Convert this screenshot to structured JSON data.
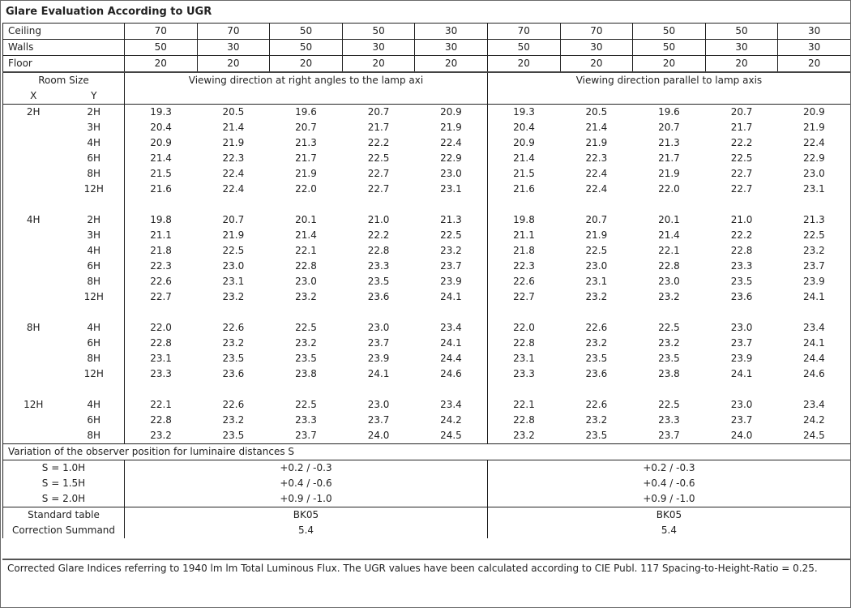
{
  "title": "Glare Evaluation According to UGR",
  "reflectances": [
    {
      "label": "Ceiling",
      "values": [
        "70",
        "70",
        "50",
        "50",
        "30",
        "70",
        "70",
        "50",
        "50",
        "30"
      ]
    },
    {
      "label": "Walls",
      "values": [
        "50",
        "30",
        "50",
        "30",
        "30",
        "50",
        "30",
        "50",
        "30",
        "30"
      ]
    },
    {
      "label": "Floor",
      "values": [
        "20",
        "20",
        "20",
        "20",
        "20",
        "20",
        "20",
        "20",
        "20",
        "20"
      ]
    }
  ],
  "header": {
    "room_size": "Room Size",
    "x": "X",
    "y": "Y",
    "dir_right": "Viewing direction at right angles to the lamp axi",
    "dir_parallel": "Viewing direction parallel to lamp axis"
  },
  "groups": [
    {
      "x": "2H",
      "rows": [
        {
          "y": "2H",
          "values": [
            "19.3",
            "20.5",
            "19.6",
            "20.7",
            "20.9",
            "19.3",
            "20.5",
            "19.6",
            "20.7",
            "20.9"
          ]
        },
        {
          "y": "3H",
          "values": [
            "20.4",
            "21.4",
            "20.7",
            "21.7",
            "21.9",
            "20.4",
            "21.4",
            "20.7",
            "21.7",
            "21.9"
          ]
        },
        {
          "y": "4H",
          "values": [
            "20.9",
            "21.9",
            "21.3",
            "22.2",
            "22.4",
            "20.9",
            "21.9",
            "21.3",
            "22.2",
            "22.4"
          ]
        },
        {
          "y": "6H",
          "values": [
            "21.4",
            "22.3",
            "21.7",
            "22.5",
            "22.9",
            "21.4",
            "22.3",
            "21.7",
            "22.5",
            "22.9"
          ]
        },
        {
          "y": "8H",
          "values": [
            "21.5",
            "22.4",
            "21.9",
            "22.7",
            "23.0",
            "21.5",
            "22.4",
            "21.9",
            "22.7",
            "23.0"
          ]
        },
        {
          "y": "12H",
          "values": [
            "21.6",
            "22.4",
            "22.0",
            "22.7",
            "23.1",
            "21.6",
            "22.4",
            "22.0",
            "22.7",
            "23.1"
          ]
        }
      ]
    },
    {
      "x": "4H",
      "rows": [
        {
          "y": "2H",
          "values": [
            "19.8",
            "20.7",
            "20.1",
            "21.0",
            "21.3",
            "19.8",
            "20.7",
            "20.1",
            "21.0",
            "21.3"
          ]
        },
        {
          "y": "3H",
          "values": [
            "21.1",
            "21.9",
            "21.4",
            "22.2",
            "22.5",
            "21.1",
            "21.9",
            "21.4",
            "22.2",
            "22.5"
          ]
        },
        {
          "y": "4H",
          "values": [
            "21.8",
            "22.5",
            "22.1",
            "22.8",
            "23.2",
            "21.8",
            "22.5",
            "22.1",
            "22.8",
            "23.2"
          ]
        },
        {
          "y": "6H",
          "values": [
            "22.3",
            "23.0",
            "22.8",
            "23.3",
            "23.7",
            "22.3",
            "23.0",
            "22.8",
            "23.3",
            "23.7"
          ]
        },
        {
          "y": "8H",
          "values": [
            "22.6",
            "23.1",
            "23.0",
            "23.5",
            "23.9",
            "22.6",
            "23.1",
            "23.0",
            "23.5",
            "23.9"
          ]
        },
        {
          "y": "12H",
          "values": [
            "22.7",
            "23.2",
            "23.2",
            "23.6",
            "24.1",
            "22.7",
            "23.2",
            "23.2",
            "23.6",
            "24.1"
          ]
        }
      ]
    },
    {
      "x": "8H",
      "rows": [
        {
          "y": "4H",
          "values": [
            "22.0",
            "22.6",
            "22.5",
            "23.0",
            "23.4",
            "22.0",
            "22.6",
            "22.5",
            "23.0",
            "23.4"
          ]
        },
        {
          "y": "6H",
          "values": [
            "22.8",
            "23.2",
            "23.2",
            "23.7",
            "24.1",
            "22.8",
            "23.2",
            "23.2",
            "23.7",
            "24.1"
          ]
        },
        {
          "y": "8H",
          "values": [
            "23.1",
            "23.5",
            "23.5",
            "23.9",
            "24.4",
            "23.1",
            "23.5",
            "23.5",
            "23.9",
            "24.4"
          ]
        },
        {
          "y": "12H",
          "values": [
            "23.3",
            "23.6",
            "23.8",
            "24.1",
            "24.6",
            "23.3",
            "23.6",
            "23.8",
            "24.1",
            "24.6"
          ]
        }
      ]
    },
    {
      "x": "12H",
      "rows": [
        {
          "y": "4H",
          "values": [
            "22.1",
            "22.6",
            "22.5",
            "23.0",
            "23.4",
            "22.1",
            "22.6",
            "22.5",
            "23.0",
            "23.4"
          ]
        },
        {
          "y": "6H",
          "values": [
            "22.8",
            "23.2",
            "23.3",
            "23.7",
            "24.2",
            "22.8",
            "23.2",
            "23.3",
            "23.7",
            "24.2"
          ]
        },
        {
          "y": "8H",
          "values": [
            "23.2",
            "23.5",
            "23.7",
            "24.0",
            "24.5",
            "23.2",
            "23.5",
            "23.7",
            "24.0",
            "24.5"
          ]
        }
      ]
    }
  ],
  "variation": {
    "title": "Variation of the observer position for luminaire distances S",
    "rows": [
      {
        "label": "S = 1.0H",
        "right": "+0.2 / -0.3",
        "parallel": "+0.2 / -0.3"
      },
      {
        "label": "S = 1.5H",
        "right": "+0.4 / -0.6",
        "parallel": "+0.4 / -0.6"
      },
      {
        "label": "S = 2.0H",
        "right": "+0.9 / -1.0",
        "parallel": "+0.9 / -1.0"
      }
    ]
  },
  "standard": {
    "label": "Standard table",
    "right": "BK05",
    "parallel": "BK05"
  },
  "correction": {
    "label": "Correction Summand",
    "right": "5.4",
    "parallel": "5.4"
  },
  "footer": "Corrected Glare Indices referring to 1940 lm lm Total Luminous Flux. The UGR values have been calculated according to CIE Publ. 117    Spacing-to-Height-Ratio = 0.25."
}
